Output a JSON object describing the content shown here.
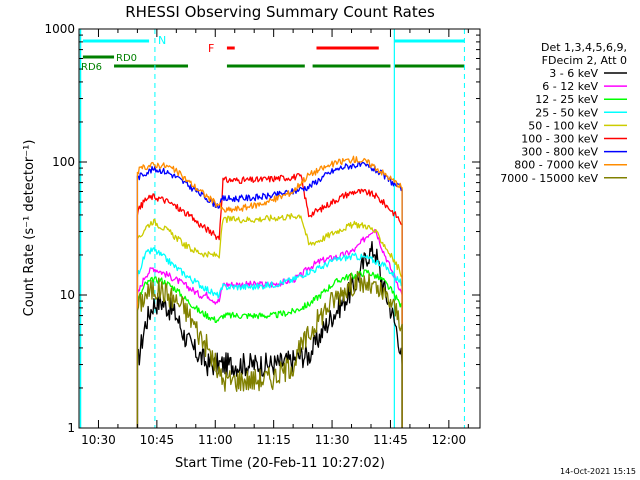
{
  "chart_data": {
    "type": "line",
    "title": "RHESSI Observing Summary Count Rates",
    "xlabel": "Start Time (20-Feb-11 10:27:02)",
    "ylabel": "Count Rate (s⁻¹ detector⁻¹)",
    "y_scale": "log",
    "ylim": [
      1,
      1000
    ],
    "xlim": [
      "10:25",
      "12:08"
    ],
    "x_ticks": [
      "10:30",
      "10:45",
      "11:00",
      "11:15",
      "11:30",
      "11:45",
      "12:00"
    ],
    "y_ticks": [
      "1",
      "10",
      "100",
      "1000"
    ],
    "timestamp": "14-Oct-2021 15:15",
    "legend": {
      "header": [
        "Det 1,3,4,5,6,9,",
        "FDecim 2, Att 0"
      ],
      "placement": "right"
    },
    "flag_labels": {
      "N": "N",
      "F": "F",
      "RD0": "RD0",
      "RD6": "RD6"
    },
    "flags": [
      {
        "label": "N",
        "color": "#00ffff",
        "intervals": [
          [
            "10:26",
            "10:43"
          ],
          [
            "11:46",
            "12:04"
          ]
        ]
      },
      {
        "label": "F",
        "color": "#ff0000",
        "intervals": [
          [
            "11:03",
            "11:05"
          ],
          [
            "11:26",
            "11:42"
          ]
        ]
      },
      {
        "label": "RD0",
        "color": "#008000",
        "intervals": [
          [
            "10:26",
            "10:34"
          ]
        ]
      },
      {
        "label": "RD6",
        "color": "#008000",
        "intervals": [
          [
            "10:34",
            "10:53"
          ],
          [
            "11:03",
            "11:23"
          ],
          [
            "11:25",
            "11:45"
          ],
          [
            "11:46",
            "12:04"
          ]
        ]
      }
    ],
    "night_markers": [
      "10:44.5",
      "12:04"
    ],
    "data_gaps": [
      [
        "10:27",
        "10:40"
      ],
      [
        "11:48",
        "12:06"
      ]
    ],
    "series": [
      {
        "name": "3 - 6 keV",
        "color": "#000000",
        "points": [
          [
            "10:40",
            3
          ],
          [
            "10:42",
            6
          ],
          [
            "10:44",
            8.5
          ],
          [
            "10:46",
            9
          ],
          [
            "10:48",
            8
          ],
          [
            "10:50",
            7
          ],
          [
            "10:52",
            5
          ],
          [
            "10:54",
            4
          ],
          [
            "10:56",
            3.5
          ],
          [
            "10:58",
            3
          ],
          [
            "11:00",
            3
          ],
          [
            "11:01",
            3
          ],
          [
            "11:02",
            3
          ],
          [
            "11:05",
            3
          ],
          [
            "11:10",
            3
          ],
          [
            "11:15",
            3
          ],
          [
            "11:20",
            3.2
          ],
          [
            "11:22",
            3.5
          ],
          [
            "11:24",
            3.5
          ],
          [
            "11:27",
            5
          ],
          [
            "11:30",
            7
          ],
          [
            "11:33",
            9
          ],
          [
            "11:36",
            12
          ],
          [
            "11:39",
            20
          ],
          [
            "11:41",
            22
          ],
          [
            "11:43",
            12
          ],
          [
            "11:45",
            8
          ],
          [
            "11:47",
            5
          ],
          [
            "11:48",
            3
          ]
        ]
      },
      {
        "name": "6 - 12 keV",
        "color": "#ff00ff",
        "points": [
          [
            "10:40",
            10
          ],
          [
            "10:42",
            14
          ],
          [
            "10:44",
            16
          ],
          [
            "10:46",
            15
          ],
          [
            "10:48",
            14
          ],
          [
            "10:50",
            13
          ],
          [
            "10:52",
            12
          ],
          [
            "10:54",
            11
          ],
          [
            "10:56",
            10
          ],
          [
            "10:58",
            10
          ],
          [
            "11:00",
            9
          ],
          [
            "11:01",
            9
          ],
          [
            "11:02",
            12
          ],
          [
            "11:05",
            12
          ],
          [
            "11:10",
            12
          ],
          [
            "11:15",
            12
          ],
          [
            "11:20",
            13
          ],
          [
            "11:22",
            14
          ],
          [
            "11:24",
            16
          ],
          [
            "11:27",
            18
          ],
          [
            "11:30",
            19
          ],
          [
            "11:33",
            20
          ],
          [
            "11:36",
            22
          ],
          [
            "11:39",
            28
          ],
          [
            "11:41",
            32
          ],
          [
            "11:43",
            22
          ],
          [
            "11:45",
            16
          ],
          [
            "11:47",
            12
          ],
          [
            "11:48",
            10
          ]
        ]
      },
      {
        "name": "12 - 25 keV",
        "color": "#00ff00",
        "points": [
          [
            "10:40",
            9
          ],
          [
            "10:42",
            12
          ],
          [
            "10:44",
            13
          ],
          [
            "10:46",
            13
          ],
          [
            "10:48",
            12
          ],
          [
            "10:50",
            11
          ],
          [
            "10:52",
            9.5
          ],
          [
            "10:54",
            8.5
          ],
          [
            "10:56",
            7.5
          ],
          [
            "10:58",
            7
          ],
          [
            "11:00",
            6.5
          ],
          [
            "11:01",
            6.5
          ],
          [
            "11:02",
            7
          ],
          [
            "11:05",
            7
          ],
          [
            "11:10",
            7
          ],
          [
            "11:15",
            7
          ],
          [
            "11:20",
            7.5
          ],
          [
            "11:22",
            8
          ],
          [
            "11:24",
            8.5
          ],
          [
            "11:27",
            10
          ],
          [
            "11:30",
            12
          ],
          [
            "11:33",
            13.5
          ],
          [
            "11:36",
            14
          ],
          [
            "11:39",
            15
          ],
          [
            "11:41",
            14
          ],
          [
            "11:43",
            13
          ],
          [
            "11:45",
            11
          ],
          [
            "11:47",
            9
          ],
          [
            "11:48",
            8
          ]
        ]
      },
      {
        "name": "25 - 50 keV",
        "color": "#00ffff",
        "points": [
          [
            "10:40",
            14
          ],
          [
            "10:42",
            20
          ],
          [
            "10:44",
            22
          ],
          [
            "10:46",
            20
          ],
          [
            "10:48",
            18
          ],
          [
            "10:50",
            16
          ],
          [
            "10:52",
            14.5
          ],
          [
            "10:54",
            13
          ],
          [
            "10:56",
            12
          ],
          [
            "10:58",
            11
          ],
          [
            "11:00",
            10
          ],
          [
            "11:01",
            10
          ],
          [
            "11:02",
            11.5
          ],
          [
            "11:05",
            11.5
          ],
          [
            "11:10",
            11.5
          ],
          [
            "11:15",
            12
          ],
          [
            "11:20",
            13
          ],
          [
            "11:22",
            14
          ],
          [
            "11:24",
            15
          ],
          [
            "11:27",
            16
          ],
          [
            "11:30",
            18
          ],
          [
            "11:33",
            19
          ],
          [
            "11:36",
            19.5
          ],
          [
            "11:39",
            19
          ],
          [
            "11:41",
            18
          ],
          [
            "11:43",
            17
          ],
          [
            "11:45",
            15
          ],
          [
            "11:47",
            13
          ],
          [
            "11:48",
            12
          ]
        ]
      },
      {
        "name": "50 - 100 keV",
        "color": "#cccc00",
        "points": [
          [
            "10:40",
            25
          ],
          [
            "10:42",
            32
          ],
          [
            "10:44",
            36
          ],
          [
            "10:46",
            33
          ],
          [
            "10:48",
            30
          ],
          [
            "10:50",
            27
          ],
          [
            "10:52",
            24
          ],
          [
            "10:54",
            22
          ],
          [
            "10:56",
            21
          ],
          [
            "10:58",
            20
          ],
          [
            "11:00",
            20
          ],
          [
            "11:01",
            20
          ],
          [
            "11:02",
            37
          ],
          [
            "11:05",
            37
          ],
          [
            "11:10",
            37
          ],
          [
            "11:15",
            38
          ],
          [
            "11:20",
            39
          ],
          [
            "11:22",
            40
          ],
          [
            "11:24",
            24
          ],
          [
            "11:27",
            26
          ],
          [
            "11:30",
            29
          ],
          [
            "11:33",
            32
          ],
          [
            "11:36",
            34
          ],
          [
            "11:39",
            33
          ],
          [
            "11:41",
            30
          ],
          [
            "11:43",
            25
          ],
          [
            "11:45",
            20
          ],
          [
            "11:47",
            16
          ],
          [
            "11:48",
            14
          ]
        ]
      },
      {
        "name": "100 - 300 keV",
        "color": "#ff0000",
        "points": [
          [
            "10:40",
            42
          ],
          [
            "10:42",
            52
          ],
          [
            "10:44",
            55
          ],
          [
            "10:46",
            53
          ],
          [
            "10:48",
            50
          ],
          [
            "10:50",
            46
          ],
          [
            "10:52",
            42
          ],
          [
            "10:54",
            38
          ],
          [
            "10:56",
            34
          ],
          [
            "10:58",
            31
          ],
          [
            "11:00",
            28
          ],
          [
            "11:01",
            27
          ],
          [
            "11:02",
            73
          ],
          [
            "11:05",
            73
          ],
          [
            "11:10",
            73
          ],
          [
            "11:15",
            75
          ],
          [
            "11:20",
            77
          ],
          [
            "11:22",
            78
          ],
          [
            "11:24",
            40
          ],
          [
            "11:27",
            44
          ],
          [
            "11:30",
            50
          ],
          [
            "11:33",
            56
          ],
          [
            "11:36",
            60
          ],
          [
            "11:39",
            59
          ],
          [
            "11:41",
            56
          ],
          [
            "11:43",
            50
          ],
          [
            "11:45",
            44
          ],
          [
            "11:47",
            38
          ],
          [
            "11:48",
            34
          ]
        ]
      },
      {
        "name": "300 - 800 keV",
        "color": "#0000ff",
        "points": [
          [
            "10:40",
            76
          ],
          [
            "10:42",
            83
          ],
          [
            "10:44",
            88
          ],
          [
            "10:46",
            87
          ],
          [
            "10:48",
            83
          ],
          [
            "10:50",
            77
          ],
          [
            "10:52",
            70
          ],
          [
            "10:54",
            64
          ],
          [
            "10:56",
            58
          ],
          [
            "10:58",
            53
          ],
          [
            "11:00",
            48
          ],
          [
            "11:01",
            47
          ],
          [
            "11:02",
            53
          ],
          [
            "11:05",
            53
          ],
          [
            "11:10",
            54
          ],
          [
            "11:15",
            56
          ],
          [
            "11:20",
            60
          ],
          [
            "11:22",
            63
          ],
          [
            "11:24",
            65
          ],
          [
            "11:27",
            75
          ],
          [
            "11:30",
            85
          ],
          [
            "11:33",
            92
          ],
          [
            "11:36",
            95
          ],
          [
            "11:39",
            93
          ],
          [
            "11:41",
            88
          ],
          [
            "11:43",
            80
          ],
          [
            "11:45",
            72
          ],
          [
            "11:47",
            65
          ],
          [
            "11:48",
            62
          ]
        ]
      },
      {
        "name": "800 - 7000 keV",
        "color": "#ff8c00",
        "points": [
          [
            "10:40",
            85
          ],
          [
            "10:42",
            92
          ],
          [
            "10:44",
            95
          ],
          [
            "10:46",
            95
          ],
          [
            "10:48",
            92
          ],
          [
            "10:50",
            85
          ],
          [
            "10:52",
            76
          ],
          [
            "10:54",
            68
          ],
          [
            "10:56",
            61
          ],
          [
            "10:58",
            55
          ],
          [
            "11:00",
            49
          ],
          [
            "11:01",
            48
          ],
          [
            "11:02",
            43
          ],
          [
            "11:05",
            44
          ],
          [
            "11:10",
            47
          ],
          [
            "11:15",
            52
          ],
          [
            "11:20",
            60
          ],
          [
            "11:22",
            70
          ],
          [
            "11:24",
            80
          ],
          [
            "11:27",
            88
          ],
          [
            "11:30",
            96
          ],
          [
            "11:33",
            102
          ],
          [
            "11:36",
            105
          ],
          [
            "11:39",
            100
          ],
          [
            "11:41",
            92
          ],
          [
            "11:43",
            83
          ],
          [
            "11:45",
            75
          ],
          [
            "11:47",
            68
          ],
          [
            "11:48",
            64
          ]
        ]
      },
      {
        "name": "7000 - 15000 keV",
        "color": "#808000",
        "points": [
          [
            "10:40",
            8
          ],
          [
            "10:42",
            10
          ],
          [
            "10:44",
            11
          ],
          [
            "10:46",
            11
          ],
          [
            "10:48",
            10
          ],
          [
            "10:50",
            9
          ],
          [
            "10:52",
            8
          ],
          [
            "10:54",
            6.5
          ],
          [
            "10:56",
            5
          ],
          [
            "10:58",
            4
          ],
          [
            "11:00",
            3
          ],
          [
            "11:01",
            2.5
          ],
          [
            "11:02",
            2.3
          ],
          [
            "11:05",
            2.3
          ],
          [
            "11:10",
            2.3
          ],
          [
            "11:15",
            2.4
          ],
          [
            "11:20",
            3
          ],
          [
            "11:22",
            4
          ],
          [
            "11:24",
            5
          ],
          [
            "11:27",
            7
          ],
          [
            "11:30",
            9
          ],
          [
            "11:33",
            11
          ],
          [
            "11:36",
            12.5
          ],
          [
            "11:39",
            12
          ],
          [
            "11:41",
            11
          ],
          [
            "11:43",
            10
          ],
          [
            "11:45",
            9
          ],
          [
            "11:47",
            7
          ],
          [
            "11:48",
            6
          ]
        ]
      }
    ]
  }
}
